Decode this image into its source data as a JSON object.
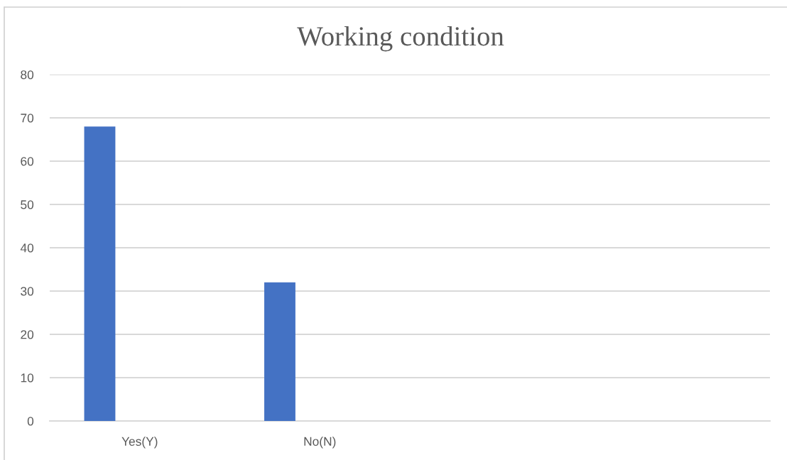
{
  "chart_data": {
    "type": "bar",
    "title": "Working condition",
    "categories": [
      "Yes(Y)",
      "No(N)",
      null,
      null
    ],
    "values": [
      68,
      32,
      null,
      null
    ],
    "color": "#4472c4",
    "ylim": [
      0,
      80
    ],
    "yticks": [
      0,
      10,
      20,
      30,
      40,
      50,
      60,
      70,
      80
    ],
    "grid": "y"
  }
}
